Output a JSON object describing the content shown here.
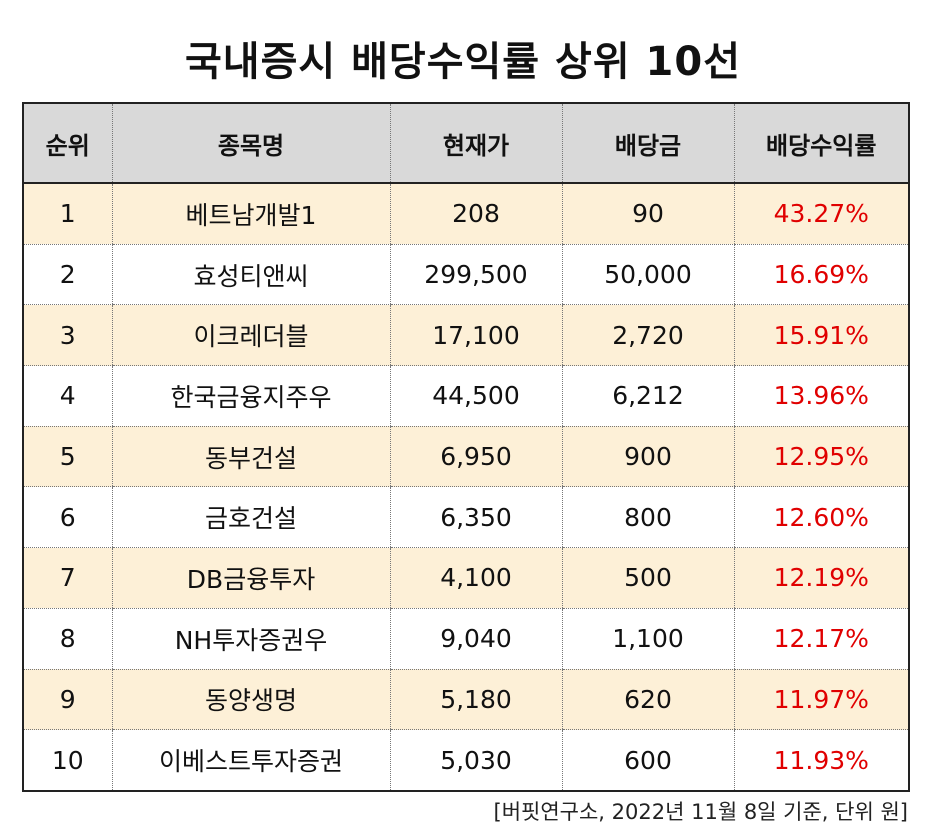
{
  "title": "국내증시 배당수익률 상위 10선",
  "chart_data": {
    "type": "table",
    "title": "국내증시 배당수익률 상위 10선",
    "columns": [
      "순위",
      "종목명",
      "현재가",
      "배당금",
      "배당수익률"
    ],
    "rows": [
      [
        "1",
        "베트남개발1",
        "208",
        "90",
        "43.27%"
      ],
      [
        "2",
        "효성티앤씨",
        "299,500",
        "50,000",
        "16.69%"
      ],
      [
        "3",
        "이크레더블",
        "17,100",
        "2,720",
        "15.91%"
      ],
      [
        "4",
        "한국금융지주우",
        "44,500",
        "6,212",
        "13.96%"
      ],
      [
        "5",
        "동부건설",
        "6,950",
        "900",
        "12.95%"
      ],
      [
        "6",
        "금호건설",
        "6,350",
        "800",
        "12.60%"
      ],
      [
        "7",
        "DB금융투자",
        "4,100",
        "500",
        "12.19%"
      ],
      [
        "8",
        "NH투자증권우",
        "9,040",
        "1,100",
        "12.17%"
      ],
      [
        "9",
        "동양생명",
        "5,180",
        "620",
        "11.97%"
      ],
      [
        "10",
        "이베스트투자증권",
        "5,030",
        "600",
        "11.93%"
      ]
    ],
    "yield_color": "#e00000",
    "row_band_color": "#fdf0d7",
    "header_color": "#d9d9d9"
  },
  "footnote": "[버핏연구소, 2022년 11월 8일 기준, 단위 원]"
}
